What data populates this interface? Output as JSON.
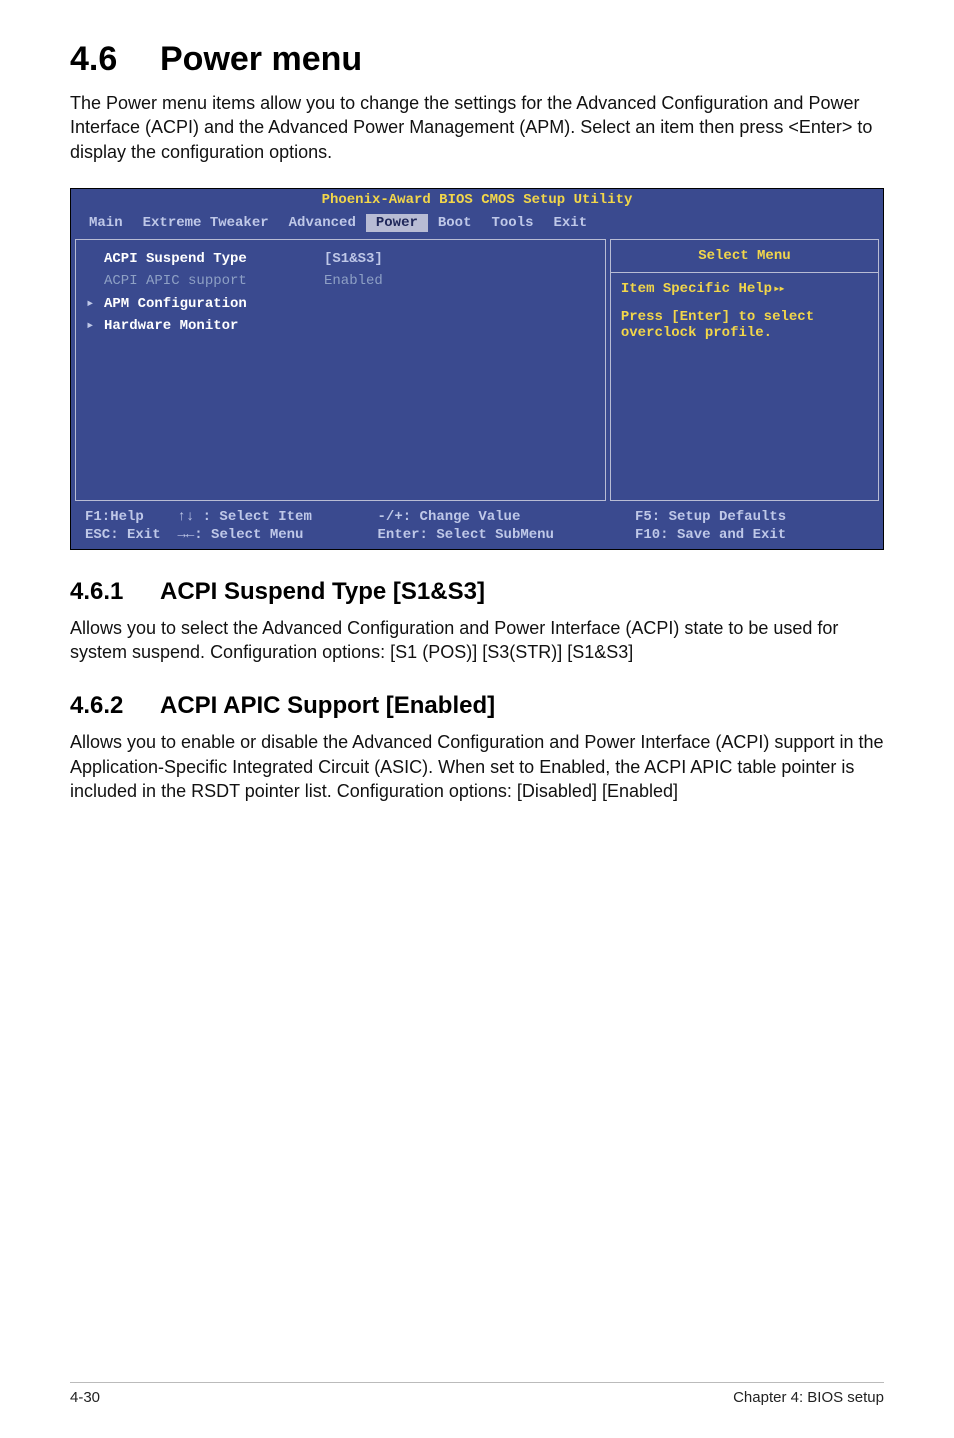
{
  "heading": {
    "num": "4.6",
    "title": "Power menu"
  },
  "intro": "The Power menu items allow you to change the settings for the Advanced Configuration and Power Interface (ACPI) and the Advanced Power Management (APM). Select an item then press <Enter> to display the configuration options.",
  "bios": {
    "title": "Phoenix-Award BIOS CMOS Setup Utility",
    "tabs": [
      "Main",
      "Extreme Tweaker",
      "Advanced",
      "Power",
      "Boot",
      "Tools",
      "Exit"
    ],
    "active_tab": "Power",
    "colors": {
      "bg": "#3a4a8f",
      "title_text": "#f2d64a",
      "tab_text": "#bfc8e8",
      "active_tab_bg": "#b8bcd4",
      "active_tab_text": "#20285a",
      "panel_border": "#b8bcd4",
      "item_white": "#ffffff",
      "item_muted": "#8ea0c5",
      "value_text": "#bfc8e8",
      "help_text": "#f2d64a"
    },
    "left_items": [
      {
        "marker": "",
        "label": "ACPI Suspend Type",
        "value": "[S1&S3]",
        "style": "white"
      },
      {
        "marker": "",
        "label": "ACPI APIC support",
        "value": "Enabled",
        "style": "muted"
      },
      {
        "marker": "▸",
        "label": "APM Configuration",
        "value": "",
        "style": "white"
      },
      {
        "marker": "▸",
        "label": "Hardware Monitor",
        "value": "",
        "style": "white"
      }
    ],
    "right": {
      "heading": "Select Menu",
      "help_label": "Item Specific Help",
      "body1": "Press [Enter] to select",
      "body2": "overclock profile."
    },
    "footer": {
      "r1c1": "F1:Help",
      "r1c2": "↑↓ : Select Item",
      "r1c3": "-/+: Change Value",
      "r1c4": "F5: Setup Defaults",
      "r2c1": "ESC: Exit",
      "r2c2": "→←: Select Menu",
      "r2c3": "Enter: Select SubMenu",
      "r2c4": "F10: Save and Exit"
    }
  },
  "sub1": {
    "num": "4.6.1",
    "title": "ACPI Suspend Type [S1&S3]",
    "text": "Allows you to select the Advanced Configuration and Power Interface (ACPI) state to be used for system suspend. Configuration options: [S1 (POS)] [S3(STR)] [S1&S3]"
  },
  "sub2": {
    "num": "4.6.2",
    "title": "ACPI APIC Support [Enabled]",
    "text": "Allows you to enable or disable the Advanced Configuration and Power Interface (ACPI) support in the Application-Specific Integrated Circuit (ASIC). When set to Enabled, the ACPI APIC table pointer is included in the RSDT pointer list. Configuration options: [Disabled] [Enabled]"
  },
  "footer": {
    "left": "4-30",
    "right": "Chapter 4: BIOS setup"
  }
}
